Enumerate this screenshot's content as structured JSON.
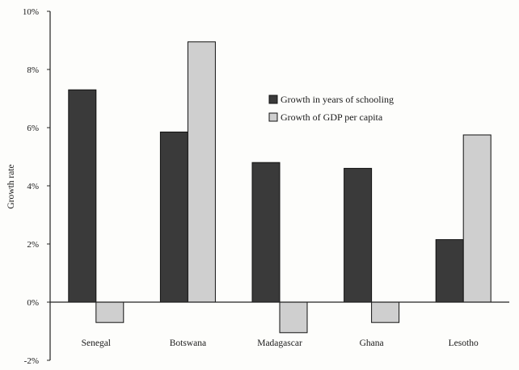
{
  "chart_data": {
    "type": "bar",
    "title": "",
    "xlabel": "",
    "ylabel": "Growth rate",
    "ylim": [
      -2,
      10
    ],
    "yticks": [
      "10%",
      "8%",
      "6%",
      "4%",
      "2%",
      "0%",
      "-2%"
    ],
    "ytick_values": [
      10,
      8,
      6,
      4,
      2,
      0,
      -2
    ],
    "grid": false,
    "legend_position": "center-right",
    "categories": [
      "Senegal",
      "Botswana",
      "Madagascar",
      "Ghana",
      "Lesotho"
    ],
    "series": [
      {
        "name": "Growth in years of schooling",
        "color": "#3a3a3a",
        "values": [
          7.3,
          5.85,
          4.8,
          4.6,
          2.15
        ]
      },
      {
        "name": "Growth of GDP per capita",
        "color": "#cfcfcf",
        "values": [
          -0.7,
          8.95,
          -1.05,
          -0.7,
          5.75
        ]
      }
    ]
  }
}
